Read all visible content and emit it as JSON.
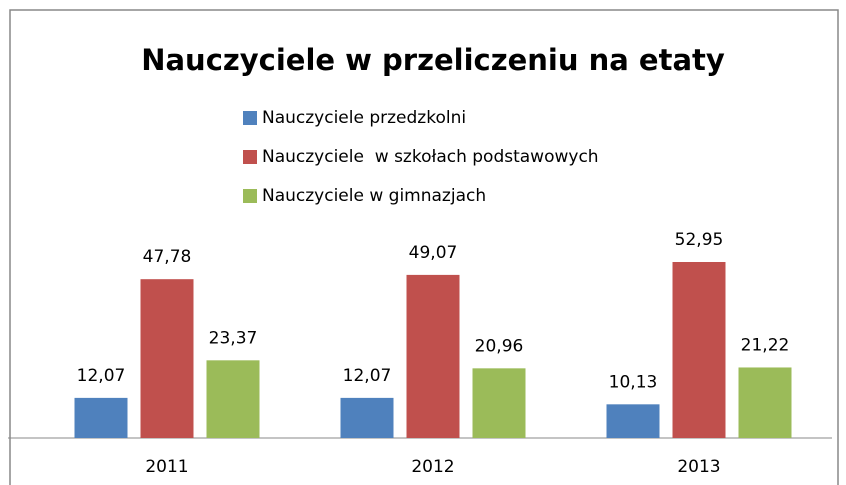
{
  "chart_data": {
    "type": "bar",
    "title": "Nauczyciele w przeliczeniu na etaty",
    "categories": [
      "2011",
      "2012",
      "2013"
    ],
    "series": [
      {
        "name": "Nauczyciele przedzkolni",
        "color": "#4f81bd",
        "values": [
          12.07,
          12.07,
          10.13
        ],
        "value_labels": [
          "12,07",
          "12,07",
          "10,13"
        ]
      },
      {
        "name": "Nauczyciele  w szkołach podstawowych",
        "color": "#c0504d",
        "values": [
          47.78,
          49.07,
          52.95
        ],
        "value_labels": [
          "47,78",
          "49,07",
          "52,95"
        ]
      },
      {
        "name": "Nauczyciele w gimnazjach",
        "color": "#9bbb59",
        "values": [
          23.37,
          20.96,
          21.22
        ],
        "value_labels": [
          "23,37",
          "20,96",
          "21,22"
        ]
      }
    ],
    "legend": "top"
  }
}
